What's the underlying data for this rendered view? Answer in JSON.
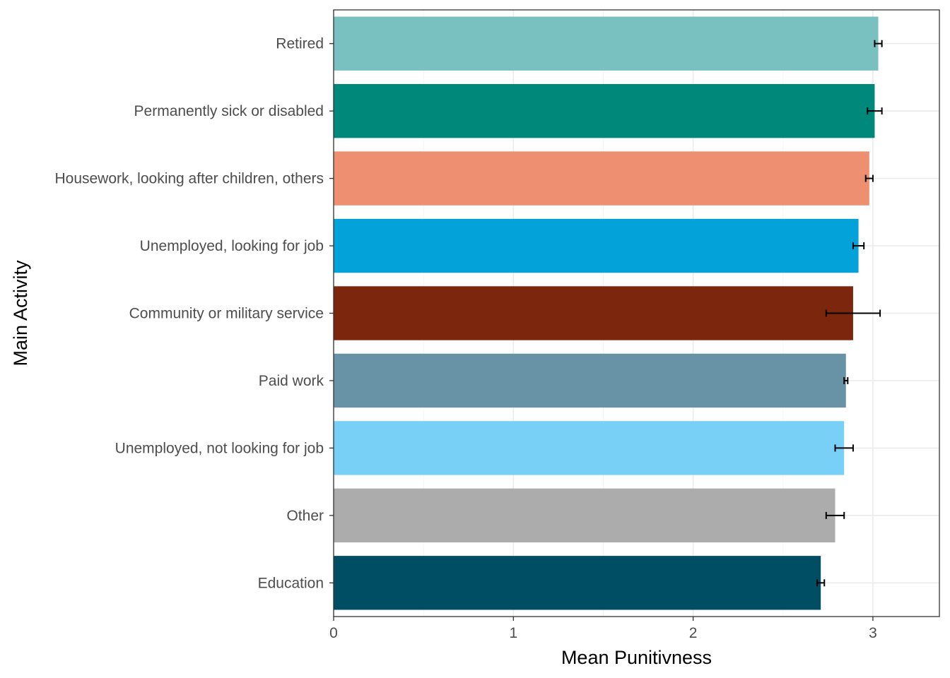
{
  "chart_data": {
    "type": "bar",
    "orientation": "horizontal",
    "xlabel": "Mean Punitivness",
    "ylabel": "Main Activity",
    "xlim": [
      0,
      3.37
    ],
    "xticks": [
      0,
      1,
      2,
      3
    ],
    "grid": true,
    "legend": "none",
    "categories": [
      "Retired",
      "Permanently sick or disabled",
      "Housework, looking after children, others",
      "Unemployed, looking for job",
      "Community or military service",
      "Paid work",
      "Unemployed, not looking for job",
      "Other",
      "Education"
    ],
    "values": [
      3.03,
      3.01,
      2.98,
      2.92,
      2.89,
      2.85,
      2.84,
      2.79,
      2.71
    ],
    "error_low": [
      3.01,
      2.97,
      2.96,
      2.89,
      2.74,
      2.84,
      2.79,
      2.74,
      2.69
    ],
    "error_high": [
      3.05,
      3.05,
      3.0,
      2.95,
      3.04,
      2.86,
      2.89,
      2.84,
      2.73
    ],
    "colors": [
      "#79c0c0",
      "#00897b",
      "#ee8f72",
      "#03a2d9",
      "#7b260d",
      "#6893a6",
      "#79d0f6",
      "#acacac",
      "#004e64"
    ]
  }
}
